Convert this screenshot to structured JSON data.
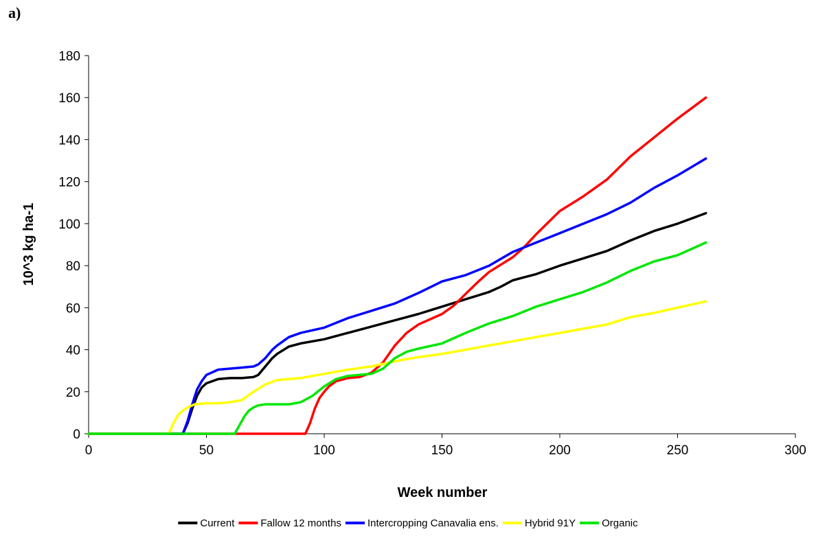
{
  "panel_label": "a)",
  "chart_data": {
    "type": "line",
    "xlabel": "Week number",
    "ylabel": "10^3 kg ha-1",
    "xlim": [
      0,
      300
    ],
    "ylim": [
      0,
      180
    ],
    "xticks": [
      0,
      50,
      100,
      150,
      200,
      250,
      300
    ],
    "yticks": [
      0,
      20,
      40,
      60,
      80,
      100,
      120,
      140,
      160,
      180
    ],
    "grid": false,
    "legend_position": "bottom",
    "series": [
      {
        "name": "Current",
        "color": "#000000",
        "x": [
          0,
          40,
          42,
          44,
          46,
          48,
          50,
          55,
          60,
          65,
          70,
          72,
          75,
          78,
          80,
          85,
          90,
          100,
          110,
          120,
          130,
          140,
          150,
          160,
          170,
          175,
          180,
          190,
          200,
          210,
          220,
          230,
          240,
          250,
          262
        ],
        "y": [
          0,
          0,
          5,
          12,
          18,
          22,
          24,
          26,
          26.5,
          26.5,
          27,
          28,
          32,
          36,
          38,
          41.5,
          43,
          45,
          48,
          51,
          54,
          57,
          60.5,
          64,
          67.5,
          70,
          73,
          76,
          80,
          83.5,
          87,
          92,
          96.5,
          100,
          105
        ]
      },
      {
        "name": "Fallow 12 months",
        "color": "#ff0000",
        "x": [
          0,
          92,
          94,
          96,
          98,
          100,
          102,
          105,
          110,
          115,
          120,
          125,
          130,
          135,
          140,
          150,
          155,
          160,
          165,
          170,
          180,
          185,
          190,
          200,
          210,
          220,
          230,
          240,
          250,
          262
        ],
        "y": [
          0,
          0,
          5,
          12,
          17,
          20,
          22.5,
          25,
          26.5,
          27,
          29,
          34,
          42,
          48,
          52,
          57,
          61,
          66.5,
          72,
          77,
          84,
          89,
          95,
          106,
          113,
          121,
          132,
          141,
          150,
          160
        ]
      },
      {
        "name": "Intercropping Canavalia ens.",
        "color": "#0000ff",
        "x": [
          0,
          40,
          42,
          44,
          46,
          48,
          50,
          55,
          60,
          65,
          70,
          72,
          75,
          78,
          80,
          85,
          90,
          100,
          110,
          120,
          130,
          140,
          150,
          160,
          170,
          180,
          190,
          200,
          210,
          220,
          230,
          240,
          250,
          262
        ],
        "y": [
          0,
          0,
          6,
          14,
          21,
          25,
          28,
          30.5,
          31,
          31.5,
          32,
          33,
          36,
          40,
          42,
          46,
          48,
          50.5,
          55,
          58.5,
          62,
          67,
          72.5,
          75.5,
          80,
          86.5,
          91,
          95.5,
          100,
          104.5,
          110,
          117,
          123,
          131
        ]
      },
      {
        "name": "Hybrid 91Y",
        "color": "#ffff00",
        "x": [
          0,
          34,
          36,
          38,
          40,
          42,
          45,
          50,
          55,
          60,
          65,
          70,
          75,
          80,
          85,
          90,
          100,
          110,
          120,
          130,
          140,
          150,
          160,
          170,
          180,
          190,
          200,
          210,
          220,
          230,
          240,
          250,
          262
        ],
        "y": [
          0,
          0,
          5,
          9,
          11,
          12.5,
          14,
          14.5,
          14.5,
          15,
          16,
          20,
          23.5,
          25.5,
          26,
          26.5,
          28.5,
          30.5,
          32,
          34.5,
          36.5,
          38,
          40,
          42,
          44,
          46,
          48,
          50,
          52,
          55.5,
          57.5,
          60,
          63
        ]
      },
      {
        "name": "Organic",
        "color": "#00e600",
        "x": [
          0,
          62,
          64,
          66,
          68,
          70,
          72,
          75,
          80,
          85,
          90,
          95,
          100,
          105,
          110,
          115,
          120,
          125,
          130,
          135,
          140,
          150,
          160,
          170,
          180,
          190,
          200,
          210,
          220,
          230,
          240,
          250,
          262
        ],
        "y": [
          0,
          0,
          4,
          8,
          11,
          12.5,
          13.5,
          14,
          14,
          14,
          15,
          18,
          22.5,
          26,
          27.5,
          28,
          28.5,
          31,
          36,
          39,
          40.5,
          43,
          48,
          52.5,
          56,
          60.5,
          64,
          67.5,
          72,
          77.5,
          82,
          85,
          91
        ]
      }
    ]
  }
}
